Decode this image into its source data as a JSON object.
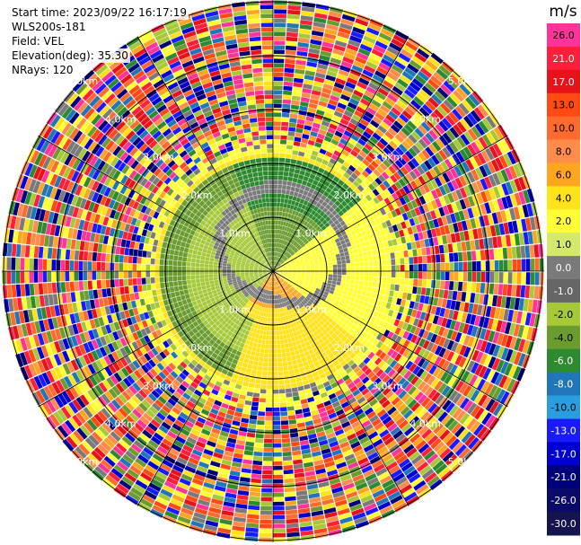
{
  "header": {
    "start_time": "Start time: 2023/09/22 16:17:19",
    "instrument": "WLS200s-181",
    "field": "Field: VEL",
    "elevation": "Elevation(deg): 35.30",
    "nrays": "NRays: 120"
  },
  "colorbar": {
    "unit": "m/s",
    "ticks": [
      "26.0",
      "21.0",
      "17.0",
      "13.0",
      "10.0",
      "8.0",
      "6.0",
      "4.0",
      "2.0",
      "1.0",
      "0.0",
      "-1.0",
      "-2.0",
      "-4.0",
      "-6.0",
      "-8.0",
      "-10.0",
      "-13.0",
      "-17.0",
      "-21.0",
      "-26.0",
      "-30.0"
    ],
    "colors": [
      "#ff3399",
      "#ff1f3a",
      "#e8121a",
      "#ff4a14",
      "#ff6a2e",
      "#ff8c4a",
      "#ffa61f",
      "#ffe21a",
      "#ffff33",
      "#d4e86b",
      "#7a7a7a",
      "#666666",
      "#a6c93a",
      "#6a9c2e",
      "#2e8a2e",
      "#1f76b8",
      "#2a9de0",
      "#1a1aff",
      "#0000d0",
      "#00007a",
      "#0a0a6a",
      "#141450"
    ]
  },
  "chart_data": {
    "type": "ppi",
    "field": "VEL",
    "unit": "m/s",
    "nrays": 120,
    "elevation_deg": 35.3,
    "range_rings_km": [
      1.0,
      2.0,
      3.0,
      4.0,
      5.0
    ],
    "ring_labels": [
      "1.0km",
      "2.0km",
      "3.0km",
      "4.0km",
      "5.0km"
    ],
    "color_scale_bounds": [
      -30.0,
      26.0
    ]
  }
}
